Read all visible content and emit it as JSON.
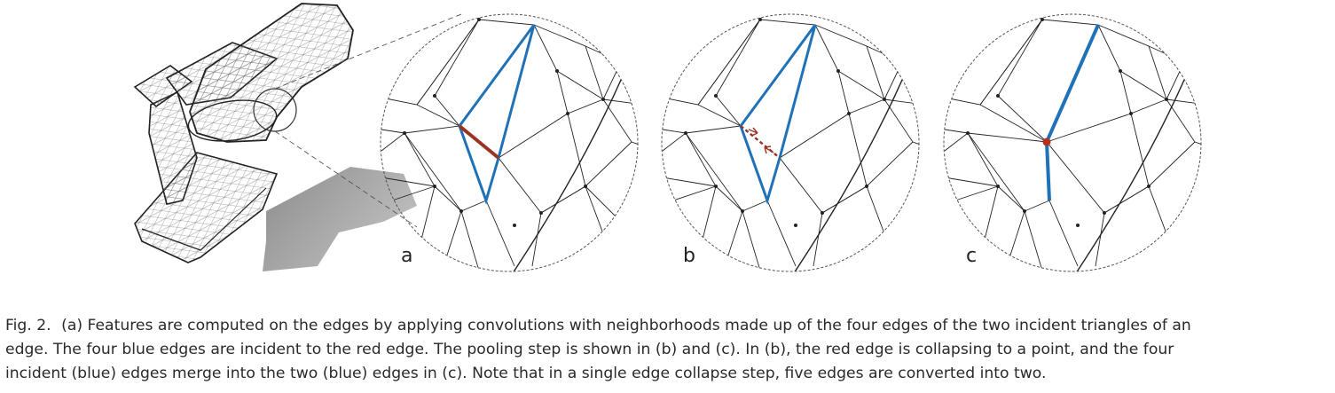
{
  "figure": {
    "panel_labels": [
      "a",
      "b",
      "c"
    ],
    "colors": {
      "feature_edges": "#1f72b8",
      "collapse_edge": "#9b3322",
      "mesh": "#222222",
      "shadow": "#8a8a8a"
    }
  },
  "caption": {
    "figure_number": "Fig. 2.",
    "lines": [
      "(a) Features are computed on the edges by applying convolutions with neighborhoods made up of the four edges of the two incident triangles of an",
      "edge. The four blue edges are incident to the red edge. The pooling step is shown in (b) and (c). In (b), the red edge is collapsing to a point, and the four",
      "incident (blue) edges merge into the two (blue) edges in (c). Note that in a single edge collapse step, five edges are converted into two."
    ]
  }
}
